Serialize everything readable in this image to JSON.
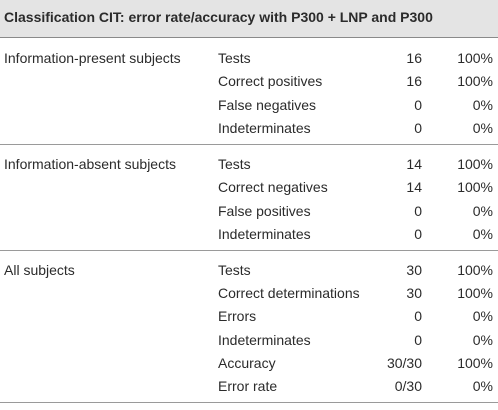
{
  "table": {
    "title": "Classification CIT: error rate/accuracy with P300 + LNP and P300",
    "groups": [
      {
        "label": "Information-present subjects",
        "rows": [
          [
            "Tests",
            "16",
            "100%"
          ],
          [
            "Correct positives",
            "16",
            "100%"
          ],
          [
            "False negatives",
            "0",
            "0%"
          ],
          [
            "Indeterminates",
            "0",
            "0%"
          ]
        ]
      },
      {
        "label": "Information-absent subjects",
        "rows": [
          [
            "Tests",
            "14",
            "100%"
          ],
          [
            "Correct negatives",
            "14",
            "100%"
          ],
          [
            "False positives",
            "0",
            "0%"
          ],
          [
            "Indeterminates",
            "0",
            "0%"
          ]
        ]
      },
      {
        "label": "All subjects",
        "rows": [
          [
            "Tests",
            "30",
            "100%"
          ],
          [
            "Correct determinations",
            "30",
            "100%"
          ],
          [
            "Errors",
            "0",
            "0%"
          ],
          [
            "Indeterminates",
            "0",
            "0%"
          ],
          [
            "Accuracy",
            "30/30",
            "100%"
          ],
          [
            "Error rate",
            "0/30",
            "0%"
          ]
        ]
      }
    ]
  }
}
